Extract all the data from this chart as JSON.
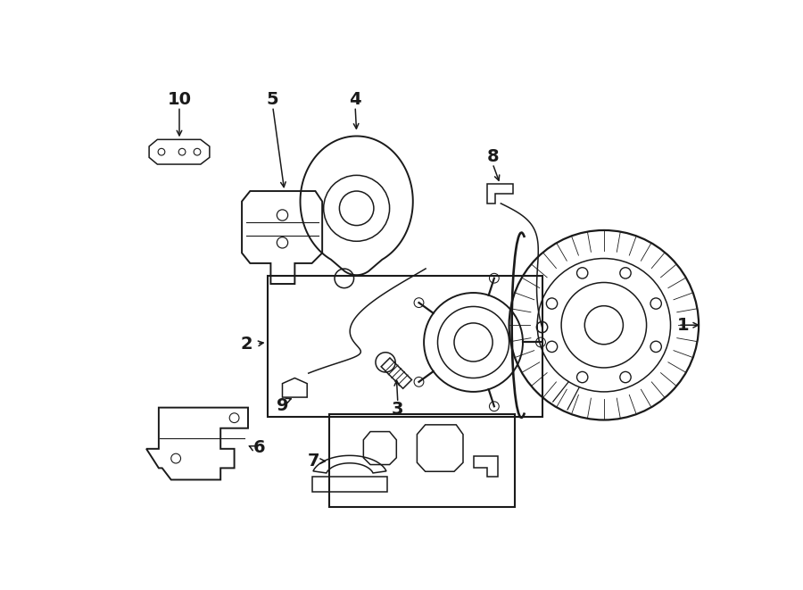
{
  "bg_color": "#ffffff",
  "line_color": "#1a1a1a",
  "fig_width": 9.0,
  "fig_height": 6.61,
  "lw": 1.1
}
